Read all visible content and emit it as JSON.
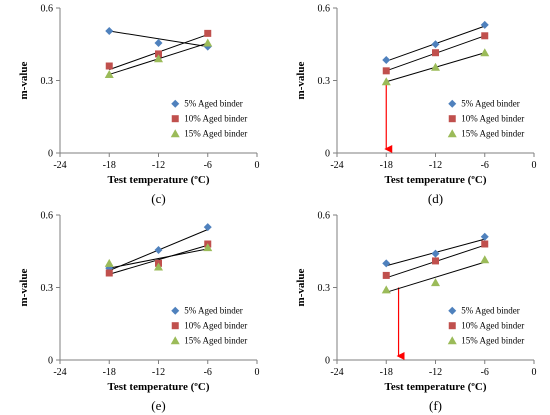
{
  "chart_data": [
    {
      "type": "scatter",
      "panel_label": "(c)",
      "xlabel": "Test temperature (ºC)",
      "ylabel": "m-value",
      "xlim": [
        -24,
        0
      ],
      "ylim": [
        0,
        0.6
      ],
      "xticks": [
        "-24",
        "-18",
        "-12",
        "-6",
        "0"
      ],
      "yticks": [
        "0",
        "0.3",
        "0.6"
      ],
      "grid": false,
      "legend_position": "bottom-right",
      "x": [
        -18,
        -12,
        -6
      ],
      "series": [
        {
          "name": "5% Aged binder",
          "values": [
            0.505,
            0.455,
            0.44
          ],
          "color": "#4f81bd",
          "marker": "diamond",
          "trend": [
            0.505,
            0.44
          ]
        },
        {
          "name": "10% Aged binder",
          "values": [
            0.36,
            0.41,
            0.495
          ],
          "color": "#c0504d",
          "marker": "square",
          "trend": [
            0.345,
            0.49
          ]
        },
        {
          "name": "15% Aged binder",
          "values": [
            0.325,
            0.39,
            0.455
          ],
          "color": "#9bbb59",
          "marker": "triangle",
          "trend": [
            0.325,
            0.455
          ]
        }
      ],
      "marker_line": null
    },
    {
      "type": "scatter",
      "panel_label": "(d)",
      "xlabel": "Test temperature (ºC)",
      "ylabel": "m-value",
      "xlim": [
        -24,
        0
      ],
      "ylim": [
        0,
        0.6
      ],
      "xticks": [
        "-24",
        "-18",
        "-12",
        "-6",
        "0"
      ],
      "yticks": [
        "0",
        "0.3",
        "0.6"
      ],
      "grid": false,
      "legend_position": "bottom-right",
      "x": [
        -18,
        -12,
        -6
      ],
      "series": [
        {
          "name": "5% Aged binder",
          "values": [
            0.385,
            0.45,
            0.53
          ],
          "color": "#4f81bd",
          "marker": "diamond",
          "trend": [
            0.38,
            0.525
          ]
        },
        {
          "name": "10% Aged binder",
          "values": [
            0.34,
            0.415,
            0.485
          ],
          "color": "#c0504d",
          "marker": "square",
          "trend": [
            0.34,
            0.485
          ]
        },
        {
          "name": "15% Aged binder",
          "values": [
            0.295,
            0.355,
            0.415
          ],
          "color": "#9bbb59",
          "marker": "triangle",
          "trend": [
            0.295,
            0.415
          ]
        }
      ],
      "marker_line": {
        "x": -18,
        "from": 0.3,
        "to": 0
      }
    },
    {
      "type": "scatter",
      "panel_label": "(e)",
      "xlabel": "Test temperature (ºC)",
      "ylabel": "m-value",
      "xlim": [
        -24,
        0
      ],
      "ylim": [
        0,
        0.6
      ],
      "xticks": [
        "-24",
        "-18",
        "-12",
        "-6",
        "0"
      ],
      "yticks": [
        "0",
        "0.3",
        "0.6"
      ],
      "grid": false,
      "legend_position": "bottom-right",
      "x": [
        -18,
        -12,
        -6
      ],
      "series": [
        {
          "name": "5% Aged binder",
          "values": [
            0.38,
            0.455,
            0.55
          ],
          "color": "#4f81bd",
          "marker": "diamond",
          "trend": [
            0.37,
            0.54
          ]
        },
        {
          "name": "10% Aged binder",
          "values": [
            0.36,
            0.4,
            0.48
          ],
          "color": "#c0504d",
          "marker": "square",
          "trend": [
            0.355,
            0.475
          ]
        },
        {
          "name": "15% Aged binder",
          "values": [
            0.4,
            0.385,
            0.465
          ],
          "color": "#9bbb59",
          "marker": "triangle",
          "trend": [
            0.38,
            0.46
          ]
        }
      ],
      "marker_line": null
    },
    {
      "type": "scatter",
      "panel_label": "(f)",
      "xlabel": "Test temperature (ºC)",
      "ylabel": "m-value",
      "xlim": [
        -24,
        0
      ],
      "ylim": [
        0,
        0.6
      ],
      "xticks": [
        "-24",
        "-18",
        "-12",
        "-6",
        "0"
      ],
      "yticks": [
        "0",
        "0.3",
        "0.6"
      ],
      "grid": false,
      "legend_position": "bottom-right",
      "x": [
        -18,
        -12,
        -6
      ],
      "series": [
        {
          "name": "5% Aged binder",
          "values": [
            0.4,
            0.44,
            0.51
          ],
          "color": "#4f81bd",
          "marker": "diamond",
          "trend": [
            0.39,
            0.5
          ]
        },
        {
          "name": "10% Aged binder",
          "values": [
            0.35,
            0.41,
            0.48
          ],
          "color": "#c0504d",
          "marker": "square",
          "trend": [
            0.34,
            0.475
          ]
        },
        {
          "name": "15% Aged binder",
          "values": [
            0.29,
            0.32,
            0.415
          ],
          "color": "#9bbb59",
          "marker": "triangle",
          "trend": [
            0.28,
            0.405
          ]
        }
      ],
      "marker_line": {
        "x": -16.5,
        "from": 0.3,
        "to": 0
      }
    }
  ]
}
